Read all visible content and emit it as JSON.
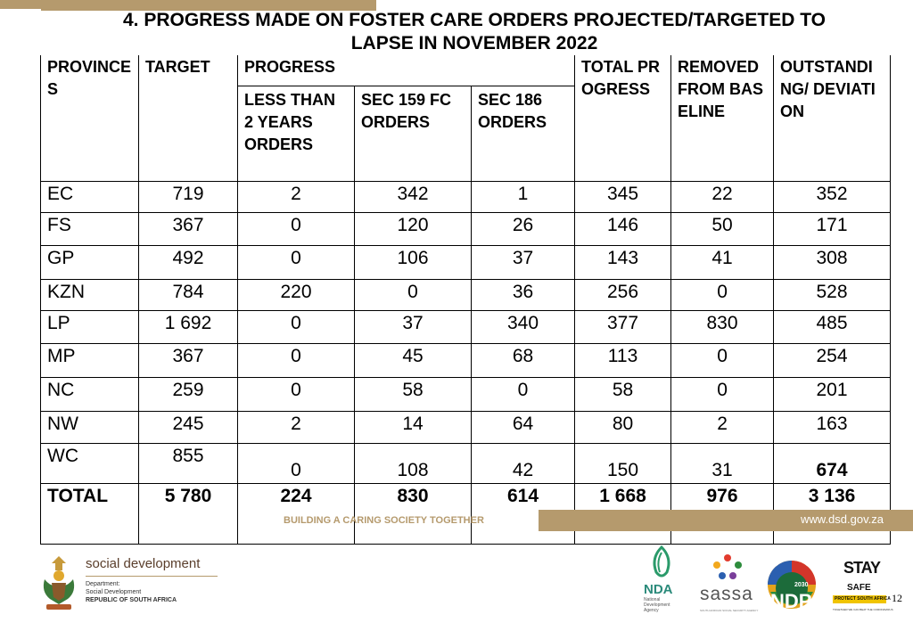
{
  "title": {
    "line1": "4. PROGRESS MADE ON FOSTER CARE ORDERS PROJECTED/TARGETED TO",
    "line2": "LAPSE IN NOVEMBER 2022"
  },
  "table": {
    "headers": {
      "provinces": "PROVINCES",
      "target": "TARGET",
      "progress": "PROGRESS",
      "less_than_2": "LESS THAN 2 YEARS ORDERS",
      "sec159": "SEC 159 FC ORDERS",
      "sec186": "SEC 186 ORDERS",
      "total_progress": "TOTAL PROGRESS",
      "removed": "REMOVED FROM BASELINE",
      "outstanding": "OUTSTANDING/ DEVIATION"
    },
    "rows": [
      {
        "prov": "EC",
        "target": "719",
        "lt2": "2",
        "s159": "342",
        "s186": "1",
        "total": "345",
        "removed": "22",
        "outstanding": "352"
      },
      {
        "prov": "FS",
        "target": "367",
        "lt2": "0",
        "s159": "120",
        "s186": "26",
        "total": "146",
        "removed": "50",
        "outstanding": "171"
      },
      {
        "prov": "GP",
        "target": "492",
        "lt2": "0",
        "s159": "106",
        "s186": "37",
        "total": "143",
        "removed": "41",
        "outstanding": "308"
      },
      {
        "prov": "KZN",
        "target": "784",
        "lt2": "220",
        "s159": "0",
        "s186": "36",
        "total": "256",
        "removed": "0",
        "outstanding": "528"
      },
      {
        "prov": "LP",
        "target": "1 692",
        "lt2": "0",
        "s159": "37",
        "s186": "340",
        "total": "377",
        "removed": "830",
        "outstanding": "485"
      },
      {
        "prov": "MP",
        "target": "367",
        "lt2": "0",
        "s159": "45",
        "s186": "68",
        "total": "113",
        "removed": "0",
        "outstanding": "254"
      },
      {
        "prov": "NC",
        "target": "259",
        "lt2": "0",
        "s159": "58",
        "s186": "0",
        "total": "58",
        "removed": "0",
        "outstanding": "201"
      },
      {
        "prov": "NW",
        "target": "245",
        "lt2": "2",
        "s159": "14",
        "s186": "64",
        "total": "80",
        "removed": "2",
        "outstanding": "163"
      },
      {
        "prov": "WC",
        "target": "855",
        "lt2": "0",
        "s159": "108",
        "s186": "42",
        "total": "150",
        "removed": "31",
        "outstanding": "674"
      }
    ],
    "total": {
      "prov": "TOTAL",
      "target": "5 780",
      "lt2": "224",
      "s159": "830",
      "s186": "614",
      "total": "1 668",
      "removed": "976",
      "outstanding": "3 136"
    }
  },
  "footer": {
    "tagline": "BUILDING A CARING SOCIETY TOGETHER",
    "url": "www.dsd.gov.za",
    "page_number": "12"
  },
  "logos": {
    "dept": {
      "name": "social development",
      "line1": "Department:",
      "line2": "Social Development",
      "line3": "REPUBLIC OF SOUTH AFRICA"
    },
    "nda": {
      "name": "NDA",
      "sub": "National Development Agency"
    },
    "sassa": {
      "name": "sassa",
      "sub": "SOUTH AFRICAN SOCIAL SECURITY AGENCY"
    },
    "ndp": {
      "name": "NDP",
      "year": "2030"
    },
    "stay_safe": {
      "line1": "STAY",
      "line2": "SAFE",
      "band": "PROTECT SOUTH AFRICA",
      "sub": "TOGETHER WE CAN BEAT THE CORONAVIRUS"
    }
  },
  "colors": {
    "accent": "#b59a6d"
  }
}
